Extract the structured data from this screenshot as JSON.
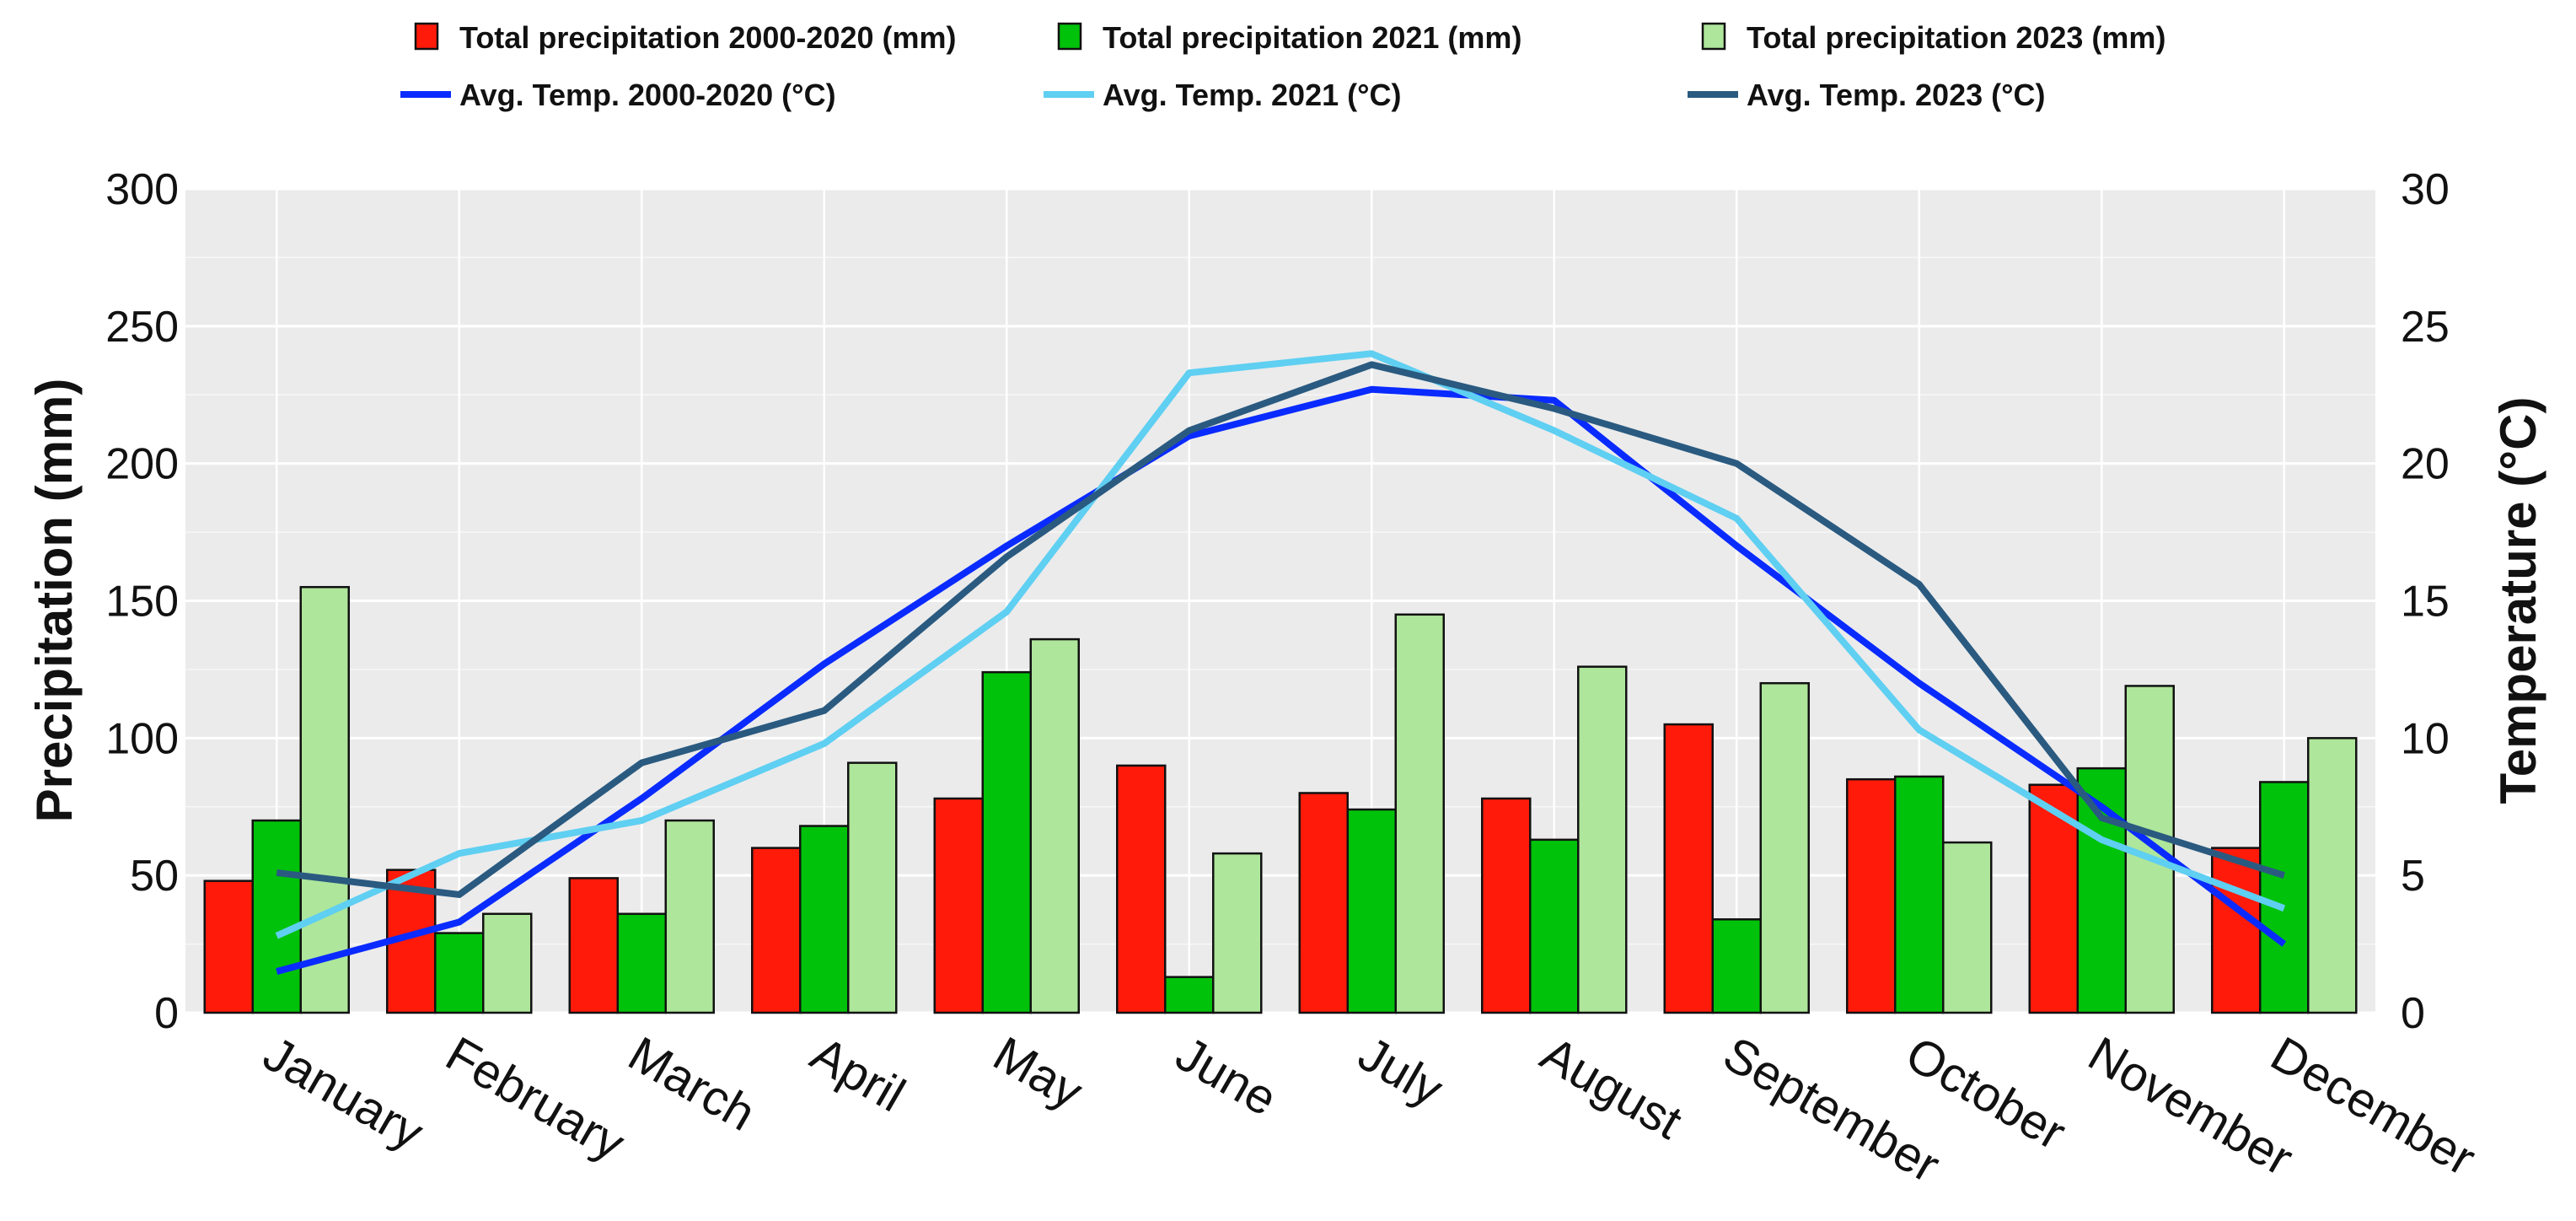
{
  "chart_data": {
    "type": "bar+line",
    "categories": [
      "January",
      "February",
      "March",
      "April",
      "May",
      "June",
      "July",
      "August",
      "September",
      "October",
      "November",
      "December"
    ],
    "bar_series": [
      {
        "name": "Total precipitation 2000-2020 (mm)",
        "color": "#ff1a0a",
        "values": [
          48,
          52,
          49,
          60,
          78,
          90,
          80,
          78,
          105,
          85,
          83,
          60
        ]
      },
      {
        "name": "Total precipitation 2021 (mm)",
        "color": "#00c20a",
        "values": [
          70,
          29,
          36,
          68,
          124,
          13,
          74,
          63,
          34,
          86,
          89,
          84
        ]
      },
      {
        "name": "Total precipitation 2023 (mm)",
        "color": "#aee69b",
        "values": [
          155,
          36,
          70,
          91,
          136,
          58,
          145,
          126,
          120,
          62,
          119,
          100
        ]
      }
    ],
    "line_series": [
      {
        "name": "Avg. Temp. 2000-2020 (°C)",
        "color": "#0a2bff",
        "values": [
          1.5,
          3.3,
          7.8,
          12.7,
          17.0,
          21.0,
          22.7,
          22.3,
          17.0,
          12.0,
          7.5,
          2.5
        ]
      },
      {
        "name": "Avg. Temp. 2021 (°C)",
        "color": "#5fcff2",
        "values": [
          2.8,
          5.8,
          7.0,
          9.8,
          14.6,
          23.3,
          24.0,
          21.2,
          18.0,
          10.3,
          6.3,
          3.8
        ]
      },
      {
        "name": "Avg. Temp. 2023 (°C)",
        "color": "#2a5a80",
        "values": [
          5.1,
          4.3,
          9.1,
          11.0,
          16.6,
          21.2,
          23.6,
          22.0,
          20.0,
          15.6,
          7.1,
          5.0
        ]
      }
    ],
    "ylabel": "Precipitation (mm)",
    "y2label": "Temperature (°C)",
    "ylim": [
      0,
      300
    ],
    "y2lim": [
      0,
      30
    ],
    "yticks": [
      "0",
      "50",
      "100",
      "150",
      "200",
      "250",
      "300"
    ],
    "y2ticks": [
      "0",
      "5",
      "10",
      "15",
      "20",
      "25",
      "30"
    ],
    "grid": true,
    "legend_position": "top"
  }
}
